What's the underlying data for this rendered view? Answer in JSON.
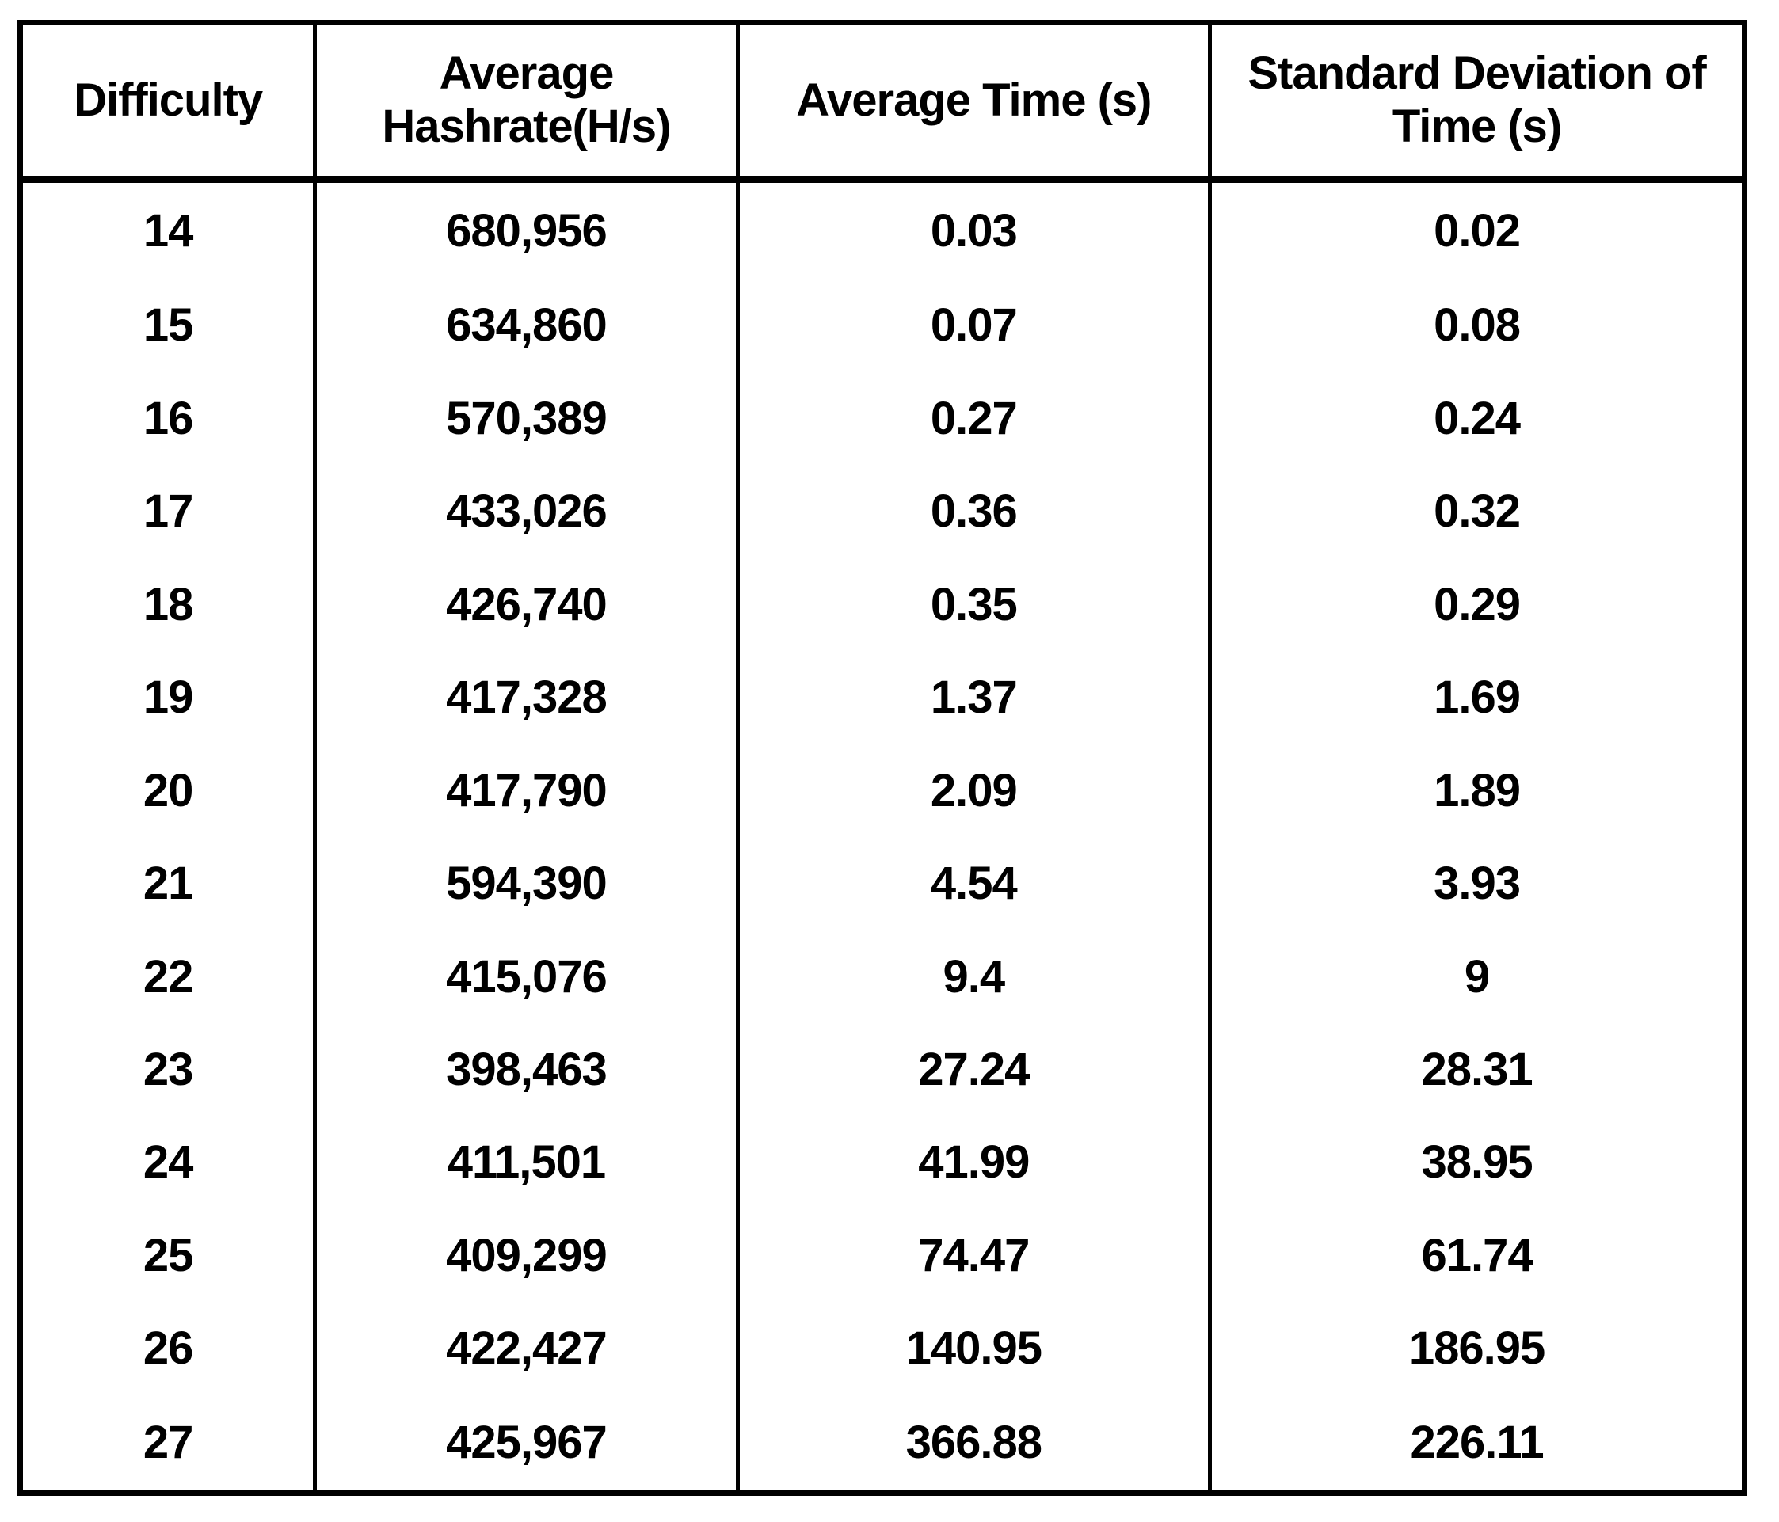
{
  "table": {
    "columns": [
      {
        "id": "difficulty",
        "label": "Difficulty"
      },
      {
        "id": "avg_hashrate",
        "label": "Average Hashrate(H/s)"
      },
      {
        "id": "avg_time",
        "label": "Average Time (s)"
      },
      {
        "id": "std_time",
        "label": "Standard Deviation of Time (s)"
      }
    ],
    "rows": [
      {
        "difficulty": "14",
        "avg_hashrate": "680,956",
        "avg_time": "0.03",
        "std_time": "0.02"
      },
      {
        "difficulty": "15",
        "avg_hashrate": "634,860",
        "avg_time": "0.07",
        "std_time": "0.08"
      },
      {
        "difficulty": "16",
        "avg_hashrate": "570,389",
        "avg_time": "0.27",
        "std_time": "0.24"
      },
      {
        "difficulty": "17",
        "avg_hashrate": "433,026",
        "avg_time": "0.36",
        "std_time": "0.32"
      },
      {
        "difficulty": "18",
        "avg_hashrate": "426,740",
        "avg_time": "0.35",
        "std_time": "0.29"
      },
      {
        "difficulty": "19",
        "avg_hashrate": "417,328",
        "avg_time": "1.37",
        "std_time": "1.69"
      },
      {
        "difficulty": "20",
        "avg_hashrate": "417,790",
        "avg_time": "2.09",
        "std_time": "1.89"
      },
      {
        "difficulty": "21",
        "avg_hashrate": "594,390",
        "avg_time": "4.54",
        "std_time": "3.93"
      },
      {
        "difficulty": "22",
        "avg_hashrate": "415,076",
        "avg_time": "9.4",
        "std_time": "9"
      },
      {
        "difficulty": "23",
        "avg_hashrate": "398,463",
        "avg_time": "27.24",
        "std_time": "28.31"
      },
      {
        "difficulty": "24",
        "avg_hashrate": "411,501",
        "avg_time": "41.99",
        "std_time": "38.95"
      },
      {
        "difficulty": "25",
        "avg_hashrate": "409,299",
        "avg_time": "74.47",
        "std_time": "61.74"
      },
      {
        "difficulty": "26",
        "avg_hashrate": "422,427",
        "avg_time": "140.95",
        "std_time": "186.95"
      },
      {
        "difficulty": "27",
        "avg_hashrate": "425,967",
        "avg_time": "366.88",
        "std_time": "226.11"
      }
    ]
  },
  "chart_data": {
    "type": "table",
    "title": "",
    "categories": [
      "Difficulty",
      "Average Hashrate(H/s)",
      "Average Time (s)",
      "Standard Deviation of Time (s)"
    ],
    "series": [
      {
        "name": "Difficulty",
        "values": [
          14,
          15,
          16,
          17,
          18,
          19,
          20,
          21,
          22,
          23,
          24,
          25,
          26,
          27
        ]
      },
      {
        "name": "Average Hashrate(H/s)",
        "values": [
          680956,
          634860,
          570389,
          433026,
          426740,
          417328,
          417790,
          594390,
          415076,
          398463,
          411501,
          409299,
          422427,
          425967
        ]
      },
      {
        "name": "Average Time (s)",
        "values": [
          0.03,
          0.07,
          0.27,
          0.36,
          0.35,
          1.37,
          2.09,
          4.54,
          9.4,
          27.24,
          41.99,
          74.47,
          140.95,
          366.88
        ]
      },
      {
        "name": "Standard Deviation of Time (s)",
        "values": [
          0.02,
          0.08,
          0.24,
          0.32,
          0.29,
          1.69,
          1.89,
          3.93,
          9,
          28.31,
          38.95,
          61.74,
          186.95,
          226.11
        ]
      }
    ]
  },
  "colors": {
    "text": "#000000",
    "border": "#000000",
    "background": "#ffffff"
  }
}
